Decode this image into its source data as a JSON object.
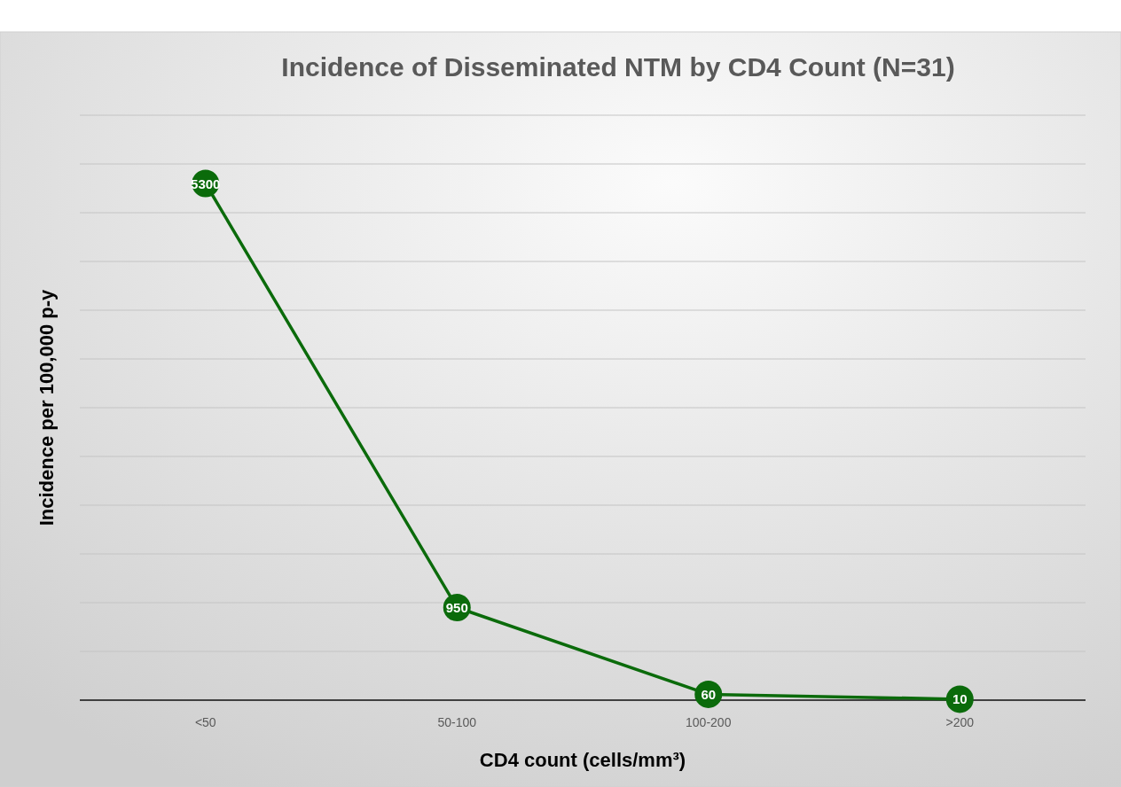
{
  "chart_data": {
    "type": "line",
    "title": "Incidence of Disseminated NTM by CD4 Count (N=31)",
    "xlabel": "CD4 count (cells/mm³)",
    "ylabel": "Incidence per 100,000 p-y",
    "categories": [
      "<50",
      "50-100",
      "100-200",
      ">200"
    ],
    "series": [
      {
        "color": "#0b6b0b",
        "values": [
          5300,
          950,
          60,
          10
        ]
      }
    ],
    "ylim": [
      0,
      6000
    ],
    "yticks": [
      {
        "value": 0,
        "label": null
      },
      {
        "value": 500,
        "label": null
      },
      {
        "value": 1000,
        "label": null
      },
      {
        "value": 1500,
        "label": null
      },
      {
        "value": 2000,
        "label": null
      },
      {
        "value": 2500,
        "label": null
      },
      {
        "value": 3000,
        "label": null
      },
      {
        "value": 3500,
        "label": null
      },
      {
        "value": 4000,
        "label": null
      },
      {
        "value": 4500,
        "label": null
      },
      {
        "value": 5000,
        "label": null
      },
      {
        "value": 5500,
        "label": null
      },
      {
        "value": 6000,
        "label": null
      }
    ],
    "tick_labels": "x",
    "grid": "y",
    "marker": "circle",
    "line_style": "solid",
    "data_labels": true
  }
}
